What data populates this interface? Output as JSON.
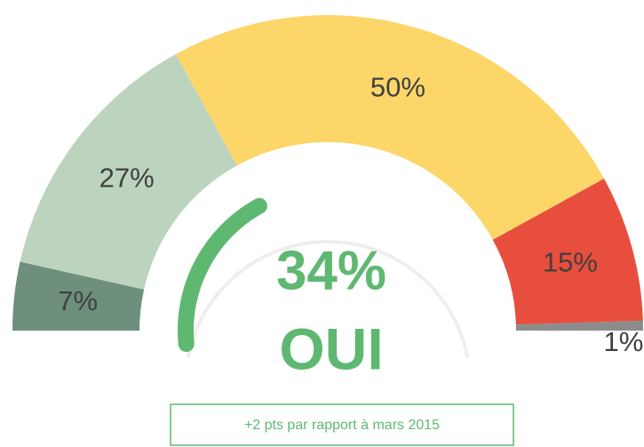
{
  "chart_data": [
    {
      "type": "semi-pie",
      "values": [
        7,
        27,
        50,
        15,
        1
      ],
      "value_labels": [
        "7%",
        "27%",
        "50%",
        "15%",
        "1%"
      ],
      "colors": [
        "#6d8f7b",
        "#bcd3be",
        "#fdd66a",
        "#e84e3d",
        "#8c8c8c"
      ]
    },
    {
      "type": "gauge",
      "value": 34,
      "value_label": "34%",
      "label": "OUI",
      "ylim": [
        0,
        100
      ],
      "color": "#5fb871",
      "annotation": "+2 pts par rapport à mars 2015"
    }
  ]
}
